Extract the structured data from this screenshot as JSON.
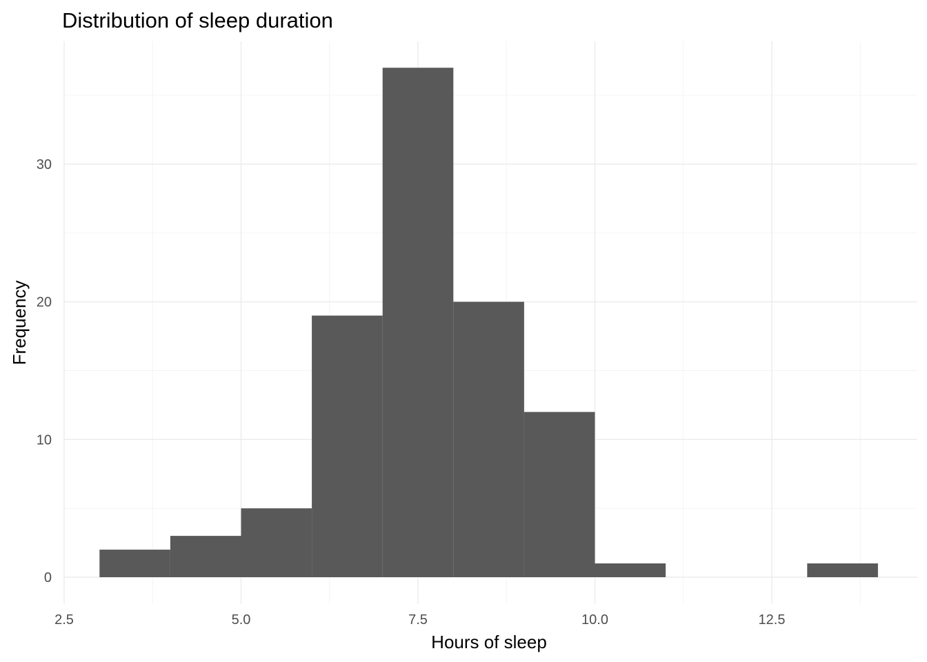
{
  "chart_data": {
    "type": "bar",
    "subtype": "histogram",
    "title": "Distribution of sleep duration",
    "xlabel": "Hours of sleep",
    "ylabel": "Frequency",
    "xlim": [
      2.5,
      14.2
    ],
    "ylim": [
      -1.5,
      38.8
    ],
    "x_ticks": [
      2.5,
      5.0,
      7.5,
      10.0,
      12.5
    ],
    "x_tick_labels": [
      "2.5",
      "5.0",
      "7.5",
      "10.0",
      "12.5"
    ],
    "y_ticks": [
      0,
      10,
      20,
      30
    ],
    "y_tick_labels": [
      "0",
      "10",
      "20",
      "30"
    ],
    "bins": [
      {
        "x0": 3,
        "x1": 4,
        "count": 2
      },
      {
        "x0": 4,
        "x1": 5,
        "count": 3
      },
      {
        "x0": 5,
        "x1": 6,
        "count": 5
      },
      {
        "x0": 6,
        "x1": 7,
        "count": 19
      },
      {
        "x0": 7,
        "x1": 8,
        "count": 37
      },
      {
        "x0": 8,
        "x1": 9,
        "count": 20
      },
      {
        "x0": 9,
        "x1": 10,
        "count": 12
      },
      {
        "x0": 10,
        "x1": 11,
        "count": 1
      },
      {
        "x0": 11,
        "x1": 12,
        "count": 0
      },
      {
        "x0": 12,
        "x1": 13,
        "count": 0
      },
      {
        "x0": 13,
        "x1": 14,
        "count": 1
      }
    ],
    "bar_color": "#595959",
    "grid": true,
    "background": "#ffffff",
    "legend": "none"
  }
}
